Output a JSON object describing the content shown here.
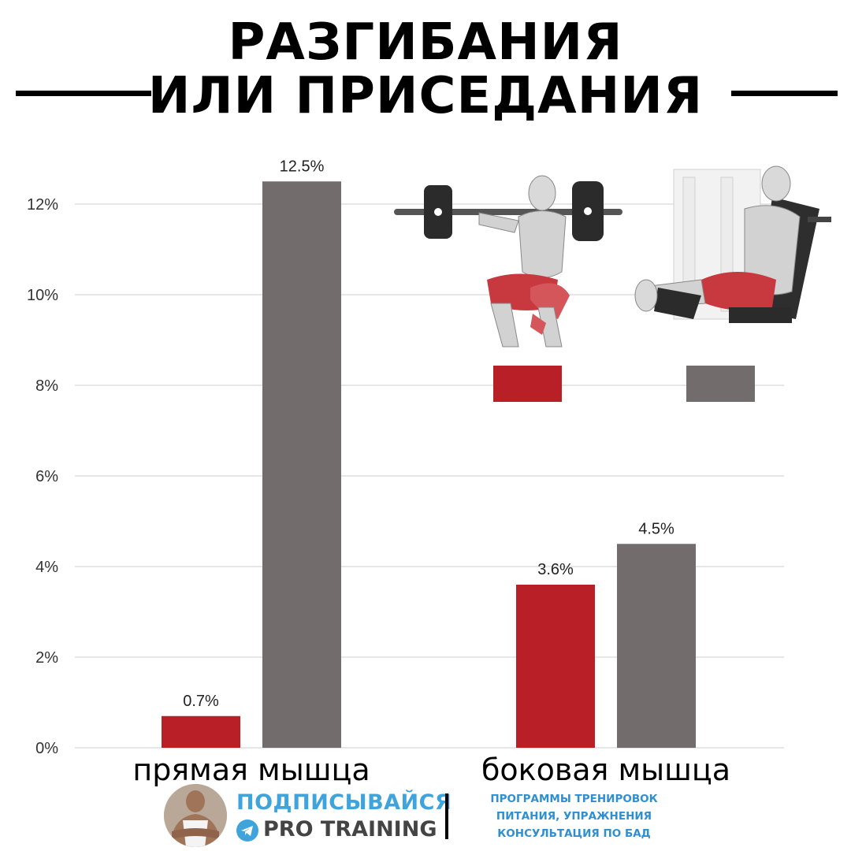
{
  "title": {
    "line1": "РАЗГИБАНИЯ",
    "line2": "ИЛИ ПРИСЕДАНИЯ"
  },
  "colors": {
    "squat": "#b81f26",
    "extension": "#726d6c",
    "grid": "#dddddd",
    "accent": "#3fa4dc"
  },
  "legend": [
    {
      "icon": "barbell-squat-figure",
      "color": "#b81f26"
    },
    {
      "icon": "leg-extension-machine-figure",
      "color": "#726d6c"
    }
  ],
  "chart_data": {
    "type": "bar",
    "categories": [
      "прямая мышца",
      "боковая мышца"
    ],
    "series": [
      {
        "values": [
          0.7,
          3.6
        ],
        "color": "#b81f26"
      },
      {
        "values": [
          12.5,
          4.5
        ],
        "color": "#726d6c"
      }
    ],
    "value_labels": [
      [
        "0.7%",
        "3.6%"
      ],
      [
        "12.5%",
        "4.5%"
      ]
    ],
    "y_ticks": [
      "0%",
      "2%",
      "4%",
      "6%",
      "8%",
      "10%",
      "12%"
    ],
    "ylim": [
      0,
      12.5
    ],
    "grid": true,
    "title": "",
    "xlabel": "",
    "ylabel": ""
  },
  "footer": {
    "cta": "ПОДПИСЫВАЙСЯ",
    "brand": "PRO TRAINING",
    "services": [
      "ПРОГРАММЫ ТРЕНИРОВОК",
      "ПИТАНИЯ, УПРАЖНЕНИЯ",
      "КОНСУЛЬТАЦИЯ ПО БАД"
    ]
  }
}
